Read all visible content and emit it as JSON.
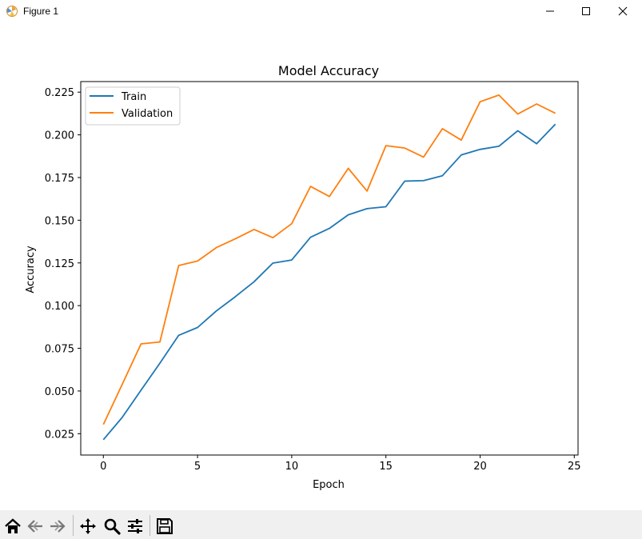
{
  "window": {
    "title": "Figure 1"
  },
  "toolbar": {
    "buttons": [
      "home-icon",
      "back-icon",
      "forward-icon",
      "pan-icon",
      "zoom-icon",
      "configure-icon",
      "save-icon"
    ]
  },
  "chart_data": {
    "type": "line",
    "title": "Model Accuracy",
    "xlabel": "Epoch",
    "ylabel": "Accuracy",
    "xlim": [
      -1.2,
      25.2
    ],
    "ylim": [
      0.0125,
      0.2312
    ],
    "xticks": [
      0,
      5,
      10,
      15,
      20,
      25
    ],
    "yticks": [
      0.025,
      0.05,
      0.075,
      0.1,
      0.125,
      0.15,
      0.175,
      0.2,
      0.225
    ],
    "xtick_labels": [
      "0",
      "5",
      "10",
      "15",
      "20",
      "25"
    ],
    "ytick_labels": [
      "0.025",
      "0.050",
      "0.075",
      "0.100",
      "0.125",
      "0.150",
      "0.175",
      "0.200",
      "0.225"
    ],
    "grid": false,
    "legend_position": "top-left",
    "x": [
      0,
      1,
      2,
      3,
      4,
      5,
      6,
      7,
      8,
      9,
      10,
      11,
      12,
      13,
      14,
      15,
      16,
      17,
      18,
      19,
      20,
      21,
      22,
      23,
      24
    ],
    "series": [
      {
        "name": "Train",
        "color": "#1f77b4",
        "values": [
          0.0215,
          0.0345,
          0.0505,
          0.0663,
          0.0826,
          0.0872,
          0.0969,
          0.1052,
          0.114,
          0.1249,
          0.1267,
          0.14,
          0.1452,
          0.1532,
          0.1568,
          0.1579,
          0.1729,
          0.1732,
          0.1761,
          0.1882,
          0.1915,
          0.1933,
          0.2024,
          0.1948,
          0.2063
        ]
      },
      {
        "name": "Validation",
        "color": "#ff7f0e",
        "values": [
          0.0304,
          0.0538,
          0.0776,
          0.0787,
          0.1235,
          0.1261,
          0.134,
          0.1391,
          0.1446,
          0.1398,
          0.148,
          0.1698,
          0.1639,
          0.1804,
          0.1671,
          0.1937,
          0.1923,
          0.187,
          0.2036,
          0.1969,
          0.2194,
          0.2233,
          0.2122,
          0.2181,
          0.2126
        ]
      }
    ]
  }
}
